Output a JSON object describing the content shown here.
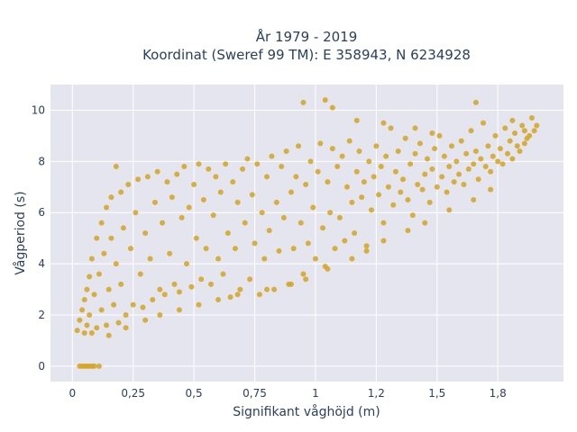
{
  "chart_data": {
    "type": "scatter",
    "title_lines": [
      "År 1979 - 2019",
      "Koordinat (Sweref 99 TM): E 358943, N 6234928"
    ],
    "xlabel": "Signifikant våghöjd (m)",
    "ylabel": "Vågperiod (s)",
    "xlim": [
      -0.09,
      2.02
    ],
    "ylim": [
      -0.6,
      11.0
    ],
    "x_ticks": [
      0,
      0.25,
      0.5,
      0.75,
      1,
      1.25,
      1.5,
      1.75
    ],
    "x_tick_labels": [
      "0",
      "0,25",
      "0,5",
      "0,75",
      "1",
      "1,2",
      "1,5",
      "1,8"
    ],
    "y_ticks": [
      0,
      2,
      4,
      6,
      8,
      10
    ],
    "y_tick_labels": [
      "0",
      "2",
      "4",
      "6",
      "8",
      "10"
    ],
    "grid": true,
    "legend": "none",
    "colors": {
      "marker": "#D4A520",
      "plot_bg": "#E5E5F0",
      "grid": "#ffffff",
      "text": "#2a3f5f"
    },
    "series": [
      {
        "points": [
          [
            0.02,
            1.4
          ],
          [
            0.03,
            1.8
          ],
          [
            0.04,
            2.2
          ],
          [
            0.05,
            1.3
          ],
          [
            0.05,
            2.6
          ],
          [
            0.06,
            3.0
          ],
          [
            0.06,
            1.6
          ],
          [
            0.07,
            3.5
          ],
          [
            0.07,
            2.0
          ],
          [
            0.08,
            4.2
          ],
          [
            0.08,
            1.3
          ],
          [
            0.09,
            2.8
          ],
          [
            0.1,
            5.0
          ],
          [
            0.1,
            1.5
          ],
          [
            0.11,
            3.6
          ],
          [
            0.12,
            5.6
          ],
          [
            0.12,
            2.2
          ],
          [
            0.13,
            4.4
          ],
          [
            0.14,
            6.2
          ],
          [
            0.14,
            1.6
          ],
          [
            0.15,
            3.0
          ],
          [
            0.16,
            6.6
          ],
          [
            0.16,
            5.0
          ],
          [
            0.17,
            2.4
          ],
          [
            0.18,
            7.8
          ],
          [
            0.18,
            4.0
          ],
          [
            0.19,
            1.7
          ],
          [
            0.2,
            6.8
          ],
          [
            0.2,
            3.2
          ],
          [
            0.21,
            5.4
          ],
          [
            0.22,
            2.0
          ],
          [
            0.23,
            7.1
          ],
          [
            0.24,
            4.6
          ],
          [
            0.25,
            2.4
          ],
          [
            0.26,
            6.0
          ],
          [
            0.27,
            7.3
          ],
          [
            0.28,
            3.6
          ],
          [
            0.29,
            2.3
          ],
          [
            0.3,
            5.2
          ],
          [
            0.31,
            7.4
          ],
          [
            0.32,
            4.2
          ],
          [
            0.33,
            2.6
          ],
          [
            0.34,
            6.4
          ],
          [
            0.35,
            7.6
          ],
          [
            0.36,
            3.0
          ],
          [
            0.37,
            5.6
          ],
          [
            0.38,
            2.8
          ],
          [
            0.39,
            7.2
          ],
          [
            0.4,
            4.4
          ],
          [
            0.41,
            6.6
          ],
          [
            0.42,
            3.2
          ],
          [
            0.43,
            7.5
          ],
          [
            0.44,
            2.9
          ],
          [
            0.45,
            5.8
          ],
          [
            0.46,
            7.8
          ],
          [
            0.47,
            4.0
          ],
          [
            0.48,
            6.2
          ],
          [
            0.49,
            3.1
          ],
          [
            0.5,
            7.1
          ],
          [
            0.51,
            5.0
          ],
          [
            0.52,
            7.9
          ],
          [
            0.53,
            3.4
          ],
          [
            0.54,
            6.5
          ],
          [
            0.55,
            4.6
          ],
          [
            0.56,
            7.7
          ],
          [
            0.57,
            3.2
          ],
          [
            0.58,
            5.9
          ],
          [
            0.59,
            7.4
          ],
          [
            0.6,
            4.2
          ],
          [
            0.61,
            6.8
          ],
          [
            0.62,
            3.6
          ],
          [
            0.63,
            7.9
          ],
          [
            0.64,
            5.2
          ],
          [
            0.65,
            2.7
          ],
          [
            0.66,
            7.2
          ],
          [
            0.67,
            4.6
          ],
          [
            0.68,
            6.4
          ],
          [
            0.69,
            3.0
          ],
          [
            0.7,
            7.7
          ],
          [
            0.71,
            5.6
          ],
          [
            0.72,
            8.1
          ],
          [
            0.73,
            3.4
          ],
          [
            0.74,
            6.7
          ],
          [
            0.75,
            4.8
          ],
          [
            0.76,
            7.9
          ],
          [
            0.77,
            2.8
          ],
          [
            0.78,
            6.0
          ],
          [
            0.79,
            4.2
          ],
          [
            0.8,
            7.4
          ],
          [
            0.81,
            5.3
          ],
          [
            0.82,
            8.2
          ],
          [
            0.83,
            3.0
          ],
          [
            0.84,
            6.4
          ],
          [
            0.85,
            4.5
          ],
          [
            0.86,
            7.8
          ],
          [
            0.87,
            5.8
          ],
          [
            0.88,
            8.4
          ],
          [
            0.89,
            3.2
          ],
          [
            0.9,
            6.8
          ],
          [
            0.91,
            4.6
          ],
          [
            0.92,
            7.4
          ],
          [
            0.93,
            8.6
          ],
          [
            0.94,
            5.6
          ],
          [
            0.95,
            3.6
          ],
          [
            0.96,
            7.1
          ],
          [
            0.97,
            4.8
          ],
          [
            0.98,
            8.0
          ],
          [
            0.99,
            6.2
          ],
          [
            1.0,
            4.2
          ],
          [
            1.01,
            7.6
          ],
          [
            1.02,
            8.7
          ],
          [
            1.03,
            5.4
          ],
          [
            1.04,
            3.9
          ],
          [
            1.05,
            7.2
          ],
          [
            1.06,
            6.0
          ],
          [
            1.07,
            8.5
          ],
          [
            1.08,
            4.6
          ],
          [
            1.09,
            7.8
          ],
          [
            1.1,
            5.8
          ],
          [
            1.11,
            8.2
          ],
          [
            1.12,
            4.9
          ],
          [
            1.13,
            7.0
          ],
          [
            1.14,
            8.8
          ],
          [
            1.15,
            6.4
          ],
          [
            1.16,
            5.2
          ],
          [
            1.17,
            7.6
          ],
          [
            1.18,
            8.4
          ],
          [
            1.19,
            6.6
          ],
          [
            1.2,
            7.2
          ],
          [
            1.21,
            4.7
          ],
          [
            1.22,
            8.0
          ],
          [
            1.23,
            6.1
          ],
          [
            1.24,
            7.4
          ],
          [
            1.25,
            8.6
          ],
          [
            1.26,
            6.7
          ],
          [
            1.27,
            7.8
          ],
          [
            1.28,
            5.6
          ],
          [
            1.29,
            8.2
          ],
          [
            1.3,
            7.0
          ],
          [
            1.31,
            9.3
          ],
          [
            1.32,
            6.3
          ],
          [
            1.33,
            7.6
          ],
          [
            1.34,
            8.4
          ],
          [
            1.35,
            6.8
          ],
          [
            1.36,
            7.3
          ],
          [
            1.37,
            8.9
          ],
          [
            1.38,
            6.5
          ],
          [
            1.39,
            7.9
          ],
          [
            1.4,
            5.9
          ],
          [
            1.41,
            8.3
          ],
          [
            1.42,
            7.1
          ],
          [
            1.43,
            8.7
          ],
          [
            1.44,
            6.9
          ],
          [
            1.45,
            7.5
          ],
          [
            1.46,
            8.1
          ],
          [
            1.47,
            6.4
          ],
          [
            1.48,
            7.7
          ],
          [
            1.49,
            8.5
          ],
          [
            1.5,
            7.0
          ],
          [
            1.51,
            9.0
          ],
          [
            1.52,
            7.4
          ],
          [
            1.53,
            8.2
          ],
          [
            1.54,
            6.8
          ],
          [
            1.55,
            7.8
          ],
          [
            1.56,
            8.6
          ],
          [
            1.57,
            7.2
          ],
          [
            1.58,
            8.0
          ],
          [
            1.59,
            7.5
          ],
          [
            1.6,
            8.8
          ],
          [
            1.61,
            7.1
          ],
          [
            1.62,
            8.3
          ],
          [
            1.63,
            7.7
          ],
          [
            1.64,
            9.2
          ],
          [
            1.65,
            7.9
          ],
          [
            1.66,
            8.4
          ],
          [
            1.67,
            7.3
          ],
          [
            1.68,
            8.1
          ],
          [
            1.69,
            9.5
          ],
          [
            1.7,
            7.8
          ],
          [
            1.71,
            8.6
          ],
          [
            1.72,
            7.6
          ],
          [
            1.73,
            8.2
          ],
          [
            1.74,
            9.0
          ],
          [
            1.75,
            8.0
          ],
          [
            1.76,
            8.5
          ],
          [
            1.77,
            7.9
          ],
          [
            1.78,
            9.3
          ],
          [
            1.79,
            8.3
          ],
          [
            1.8,
            8.8
          ],
          [
            1.81,
            8.1
          ],
          [
            1.82,
            9.1
          ],
          [
            1.83,
            8.6
          ],
          [
            1.84,
            8.4
          ],
          [
            1.85,
            9.4
          ],
          [
            1.86,
            8.7
          ],
          [
            1.87,
            8.9
          ],
          [
            1.88,
            9.0
          ],
          [
            1.89,
            9.7
          ],
          [
            1.9,
            9.2
          ],
          [
            1.91,
            9.4
          ],
          [
            0.95,
            10.3
          ],
          [
            1.04,
            10.4
          ],
          [
            1.07,
            10.1
          ],
          [
            1.17,
            9.6
          ],
          [
            1.28,
            9.5
          ],
          [
            1.41,
            9.3
          ],
          [
            1.48,
            9.1
          ],
          [
            1.66,
            10.3
          ],
          [
            1.81,
            9.6
          ],
          [
            1.86,
            9.2
          ],
          [
            0.04,
            0.0
          ],
          [
            0.05,
            0.0
          ],
          [
            0.06,
            0.0
          ],
          [
            0.07,
            0.0
          ],
          [
            0.08,
            0.0
          ],
          [
            0.09,
            0.0
          ],
          [
            0.11,
            0.0
          ],
          [
            0.03,
            0.0
          ],
          [
            0.15,
            1.2
          ],
          [
            0.22,
            1.5
          ],
          [
            0.3,
            1.8
          ],
          [
            0.36,
            2.0
          ],
          [
            0.44,
            2.2
          ],
          [
            0.52,
            2.4
          ],
          [
            0.6,
            2.6
          ],
          [
            0.68,
            2.8
          ],
          [
            0.8,
            3.0
          ],
          [
            0.9,
            3.2
          ],
          [
            0.96,
            3.4
          ],
          [
            1.05,
            3.8
          ],
          [
            1.15,
            4.2
          ],
          [
            1.21,
            4.5
          ],
          [
            1.28,
            4.9
          ],
          [
            1.38,
            5.3
          ],
          [
            1.45,
            5.6
          ],
          [
            1.55,
            6.1
          ],
          [
            1.65,
            6.5
          ],
          [
            1.72,
            6.9
          ]
        ]
      }
    ]
  }
}
